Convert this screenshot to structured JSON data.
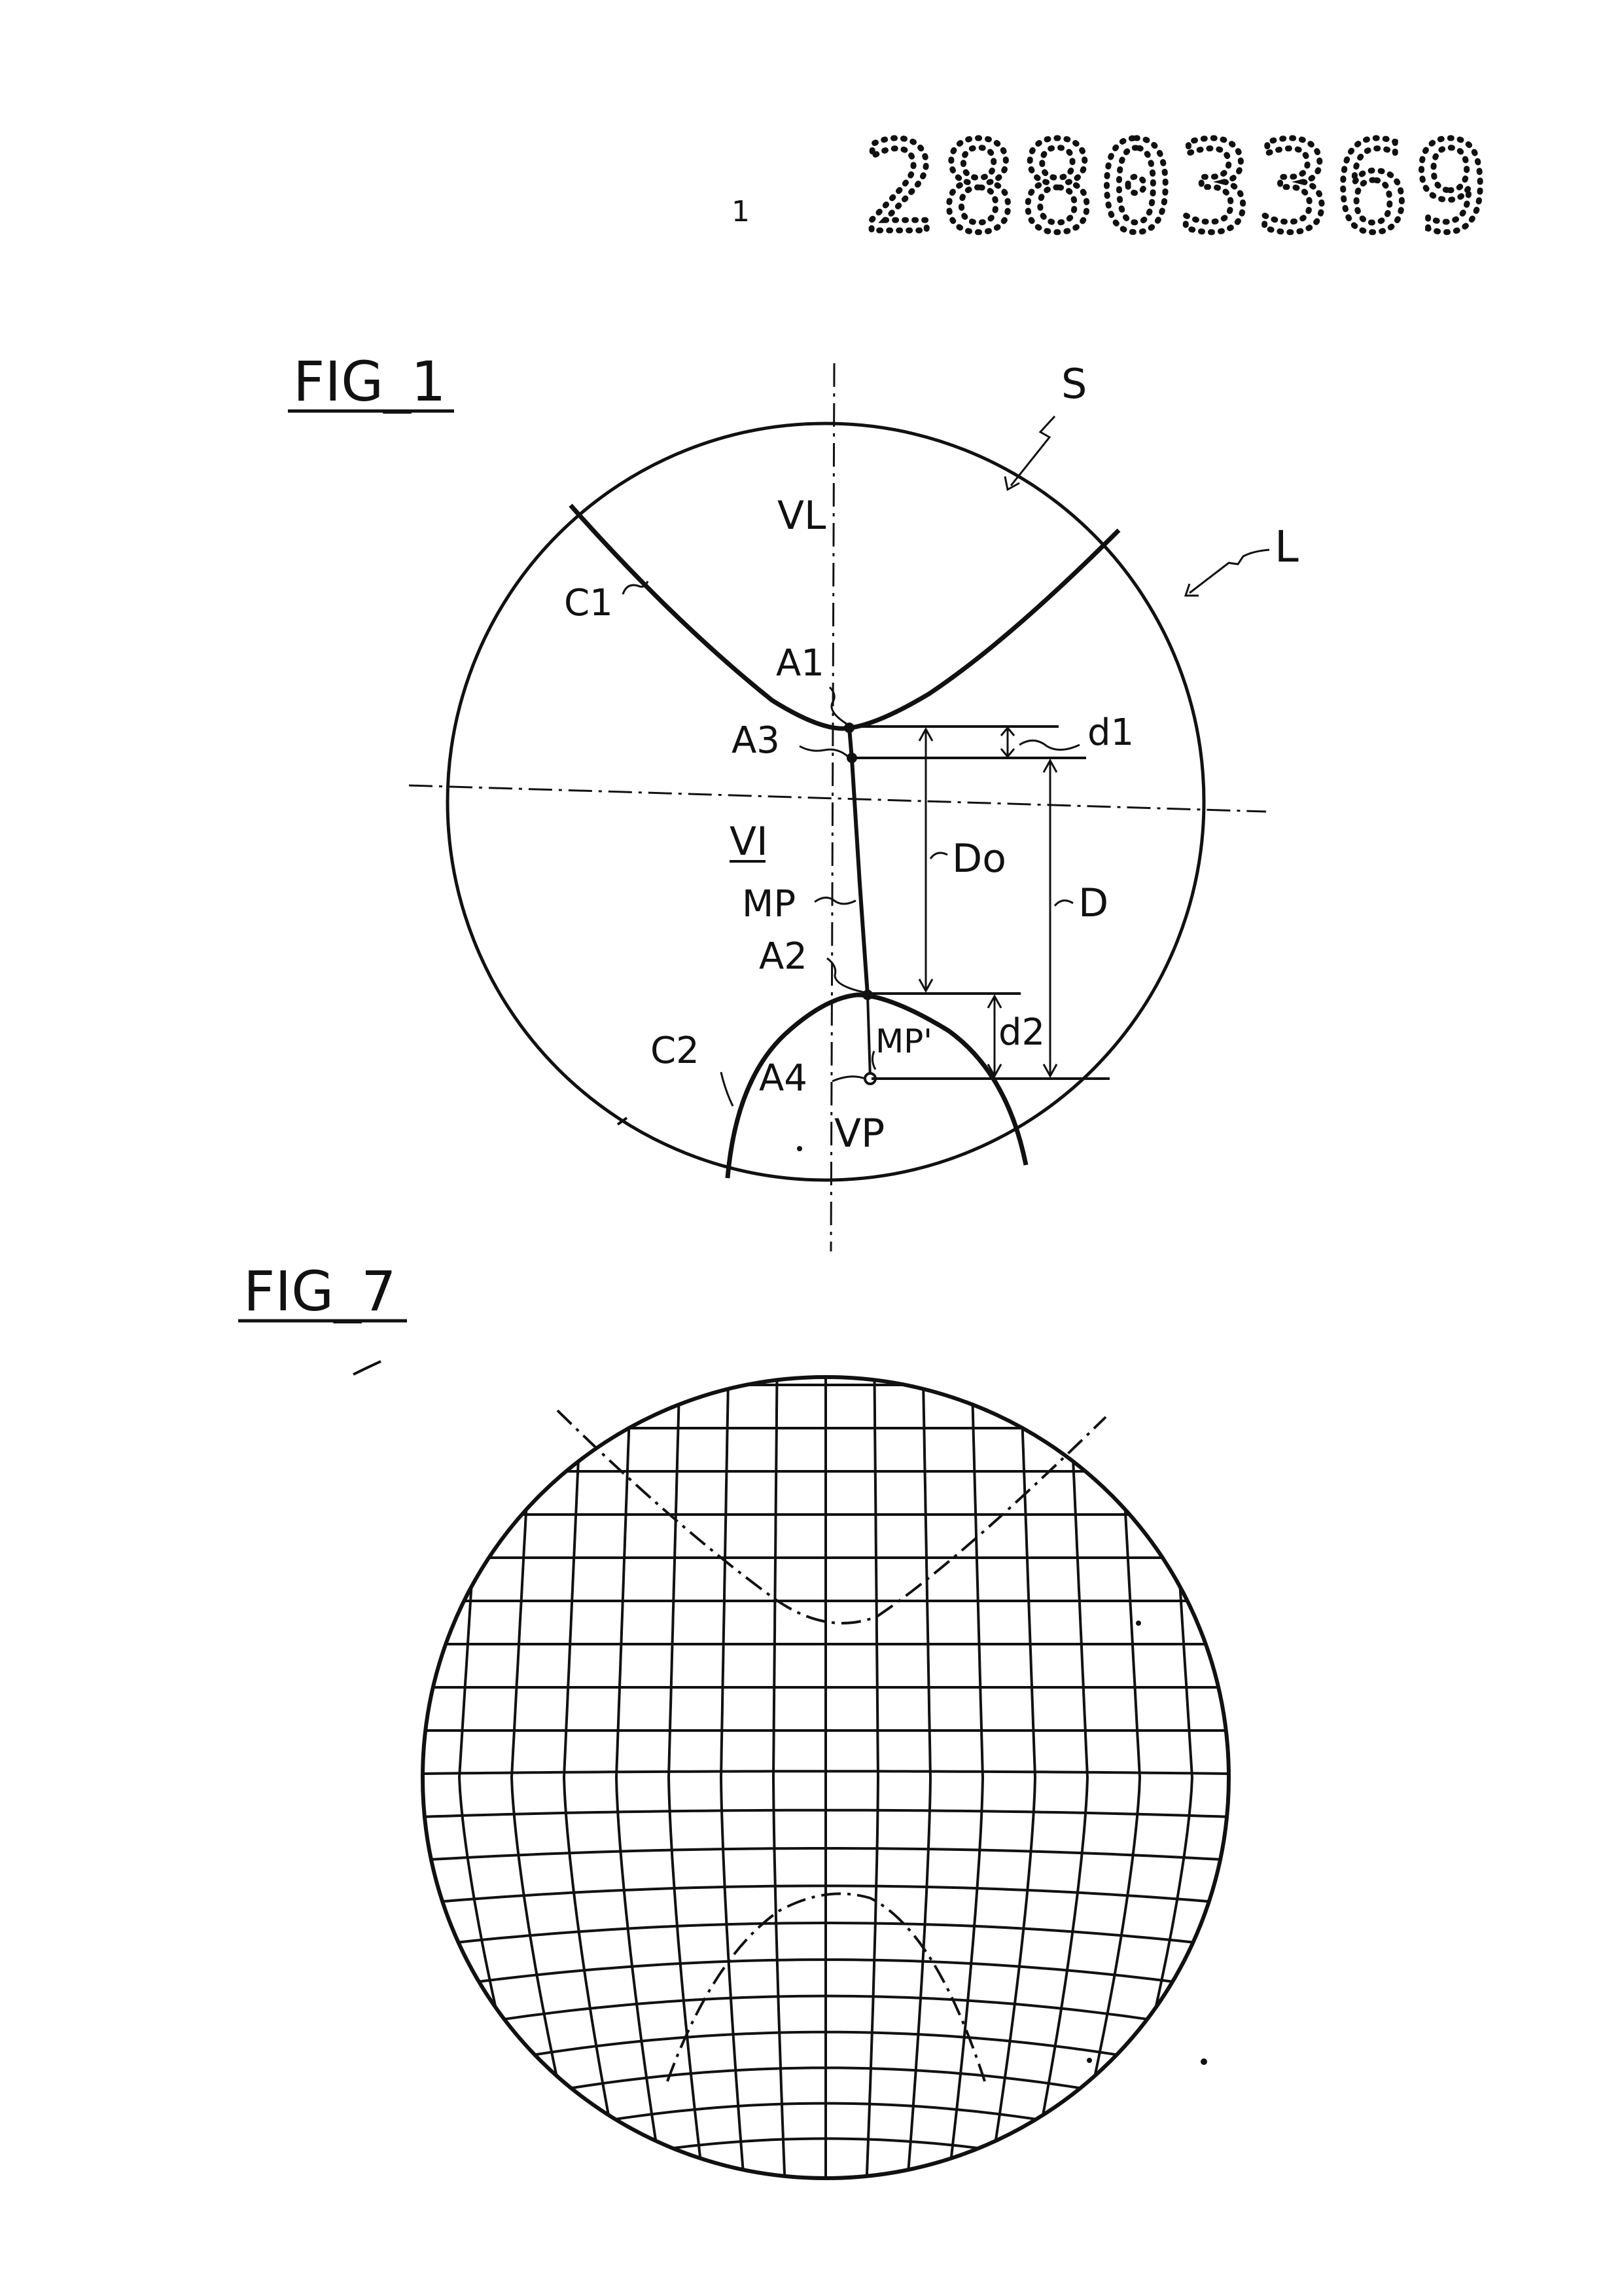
{
  "header": {
    "page_number": "1",
    "document_number": "2880336​9"
  },
  "fig1": {
    "title": "FIG_1",
    "labels": {
      "s": "S",
      "l": "L",
      "vl": "VL",
      "c1": "C1",
      "a1": "A1",
      "a3": "A3",
      "d1": "d1",
      "vi": "VI",
      "do": "Do",
      "d": "D",
      "mp": "MP",
      "a2": "A2",
      "mp_prime": "MP'",
      "d2": "d2",
      "c2": "C2",
      "a4": "A4",
      "vp": "VP"
    }
  },
  "fig7": {
    "title": "FIG_7"
  }
}
